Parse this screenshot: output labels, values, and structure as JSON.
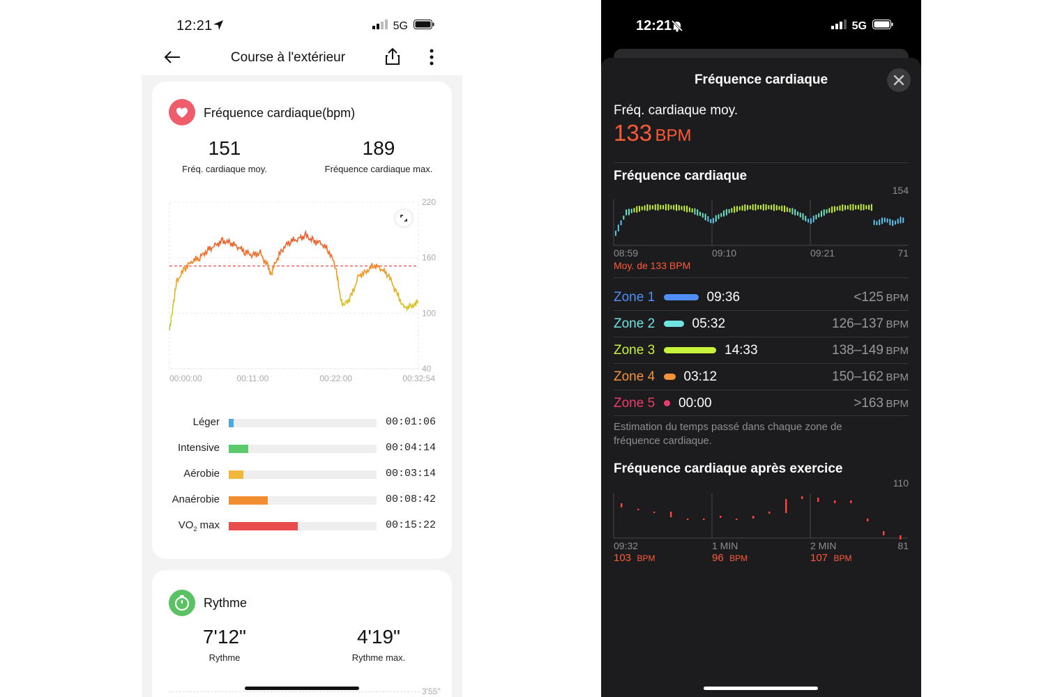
{
  "left": {
    "status": {
      "time": "12:21",
      "network": "5G"
    },
    "nav": {
      "title": "Course à l'extérieur"
    },
    "heart_card": {
      "title": "Fréquence cardiaque(bpm)",
      "avg_value": "151",
      "avg_label": "Fréq. cardiaque moy.",
      "max_value": "189",
      "max_label": "Fréquence cardiaque max.",
      "chart_yticks": [
        "220",
        "160",
        "100",
        "40"
      ],
      "chart_xticks": [
        "00:00:00",
        "00:11:00",
        "00:22:00",
        "00:32:54"
      ]
    },
    "zones": [
      {
        "label": "Léger",
        "time": "00:01:06",
        "fraction": 0.031,
        "color": "#4aa8e6"
      },
      {
        "label": "Intensive",
        "time": "00:04:14",
        "fraction": 0.13,
        "color": "#5cc96b"
      },
      {
        "label": "Aérobie",
        "time": "00:03:14",
        "fraction": 0.098,
        "color": "#f2b73a"
      },
      {
        "label": "Anaérobie",
        "time": "00:08:42",
        "fraction": 0.265,
        "color": "#f28c30"
      },
      {
        "label": "VO",
        "label_sub": "2",
        "label_suffix": " max",
        "time": "00:15:22",
        "fraction": 0.467,
        "color": "#e84c4c"
      }
    ],
    "pace_card": {
      "title": "Rythme",
      "avg_value": "7'12\"",
      "avg_label": "Rythme",
      "max_value": "4'19\"",
      "max_label": "Rythme max.",
      "ytick": "3'55\""
    }
  },
  "right": {
    "status": {
      "time": "12:21",
      "network": "5G"
    },
    "sheet_title": "Fréquence cardiaque",
    "avg_label": "Fréq. cardiaque moy.",
    "avg_value": "133",
    "avg_unit": "BPM",
    "chart1": {
      "title": "Fréquence cardiaque",
      "ymax": "154",
      "ymin": "71",
      "xticks": [
        "08:59",
        "09:10",
        "09:21"
      ],
      "avg_note": "Moy. de 133 BPM"
    },
    "zones": [
      {
        "name": "Zone 1",
        "time": "09:36",
        "range": "<125",
        "unit": "BPM",
        "color": "#4f8ff7",
        "fraction": 0.66
      },
      {
        "name": "Zone 2",
        "time": "05:32",
        "range": "126–137",
        "unit": "BPM",
        "color": "#6ee3e0",
        "fraction": 0.38
      },
      {
        "name": "Zone 3",
        "time": "14:33",
        "range": "138–149",
        "unit": "BPM",
        "color": "#c9f23a",
        "fraction": 1.0
      },
      {
        "name": "Zone 4",
        "time": "03:12",
        "range": "150–162",
        "unit": "BPM",
        "color": "#f5913a",
        "fraction": 0.22
      },
      {
        "name": "Zone 5",
        "time": "00:00",
        "range": ">163",
        "unit": "BPM",
        "color": "#ee3b6b",
        "fraction": 0.0
      }
    ],
    "zones_note": "Estimation du temps passé dans chaque zone de fréquence cardiaque.",
    "chart2": {
      "title": "Fréquence cardiaque après exercice",
      "ymax": "110",
      "ymin": "81",
      "xticks": [
        "09:32",
        "1 MIN",
        "2 MIN"
      ],
      "values": [
        {
          "value": "103",
          "unit": "BPM"
        },
        {
          "value": "96",
          "unit": "BPM"
        },
        {
          "value": "107",
          "unit": "BPM"
        }
      ]
    }
  },
  "chart_data": [
    {
      "type": "line",
      "title": "Fréquence cardiaque(bpm)",
      "xlabel": "",
      "ylabel": "",
      "ylim": [
        40,
        220
      ],
      "x_ticks": [
        "00:00:00",
        "00:11:00",
        "00:22:00",
        "00:32:54"
      ],
      "avg_line": 151,
      "series": [
        {
          "values_minutes": [
            0,
            0.5,
            1,
            2,
            3,
            4,
            5,
            6,
            7,
            8,
            9,
            10,
            11,
            12,
            13,
            13.5,
            14,
            15,
            16,
            17,
            18,
            19,
            20,
            21,
            22,
            22.5,
            23,
            24,
            25,
            26,
            27,
            28,
            29,
            30,
            31,
            32,
            32.9
          ],
          "values": [
            80,
            110,
            135,
            148,
            156,
            160,
            168,
            173,
            178,
            176,
            172,
            166,
            163,
            165,
            150,
            142,
            155,
            170,
            178,
            180,
            184,
            178,
            176,
            168,
            150,
            120,
            108,
            118,
            140,
            145,
            152,
            148,
            140,
            122,
            106,
            108,
            112
          ]
        }
      ]
    },
    {
      "type": "bar",
      "title": "Fréquence cardiaque",
      "ylim": [
        71,
        154
      ],
      "x_ticks": [
        "08:59",
        "09:10",
        "09:21"
      ]
    },
    {
      "type": "scatter",
      "title": "Fréquence cardiaque après exercice",
      "ylim": [
        81,
        110
      ],
      "x_ticks": [
        "09:32",
        "1 MIN",
        "2 MIN"
      ]
    }
  ]
}
